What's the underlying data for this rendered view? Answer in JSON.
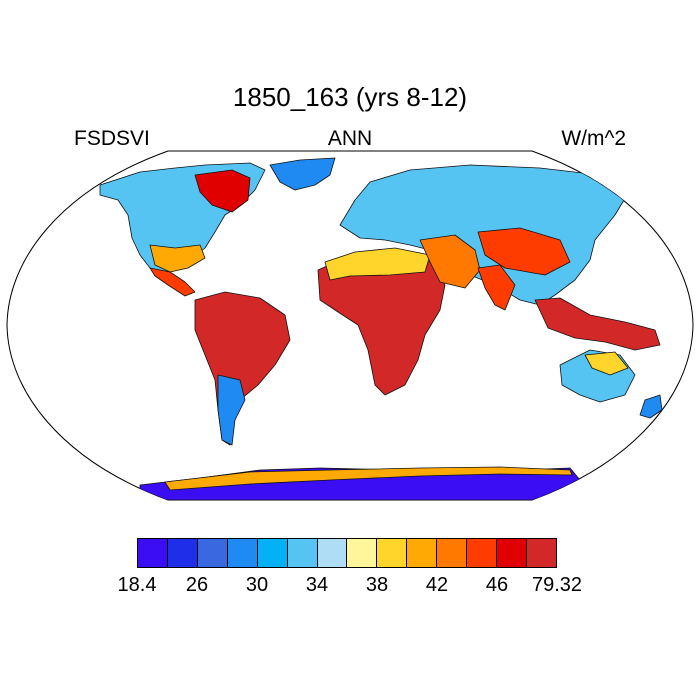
{
  "title": "1850_163 (yrs 8-12)",
  "left_label": "FSDSVI",
  "center_label": "ANN",
  "right_label": "W/m^2",
  "colorbar": {
    "colors": [
      "#3b0df5",
      "#1f2ee8",
      "#3a68e0",
      "#1f8bf2",
      "#04b1f5",
      "#56c4f3",
      "#aeddf5",
      "#fff59a",
      "#ffd52b",
      "#ffa905",
      "#ff7800",
      "#ff3c00",
      "#e10000",
      "#d22828"
    ],
    "labels": [
      "18.4",
      "26",
      "30",
      "34",
      "38",
      "42",
      "46",
      "79.32"
    ]
  },
  "chart_data": {
    "type": "heatmap",
    "variable": "FSDSVI",
    "period": "ANN",
    "units": "W/m^2",
    "levels": [
      18.4,
      26,
      30,
      34,
      38,
      42,
      46,
      79.32
    ]
  }
}
